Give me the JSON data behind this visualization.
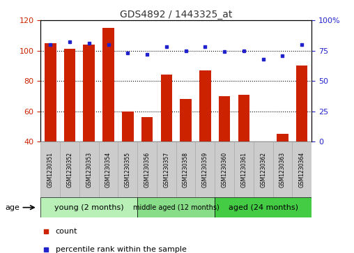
{
  "title": "GDS4892 / 1443325_at",
  "samples": [
    "GSM1230351",
    "GSM1230352",
    "GSM1230353",
    "GSM1230354",
    "GSM1230355",
    "GSM1230356",
    "GSM1230357",
    "GSM1230358",
    "GSM1230359",
    "GSM1230360",
    "GSM1230361",
    "GSM1230362",
    "GSM1230363",
    "GSM1230364"
  ],
  "counts": [
    105,
    101,
    104,
    115,
    60,
    56,
    84,
    68,
    87,
    70,
    71,
    40,
    45,
    90
  ],
  "percentiles": [
    80,
    82,
    81,
    80,
    73,
    72,
    78,
    75,
    78,
    74,
    75,
    68,
    71,
    80
  ],
  "ylim_left": [
    40,
    120
  ],
  "ylim_right": [
    0,
    100
  ],
  "yticks_left": [
    40,
    60,
    80,
    100,
    120
  ],
  "yticks_right": [
    0,
    25,
    50,
    75,
    100
  ],
  "groups": [
    {
      "label": "young (2 months)",
      "start": 0,
      "end": 5
    },
    {
      "label": "middle aged (12 months)",
      "start": 5,
      "end": 9
    },
    {
      "label": "aged (24 months)",
      "start": 9,
      "end": 14
    }
  ],
  "group_colors": [
    "#b8f0b8",
    "#88dd88",
    "#44cc44"
  ],
  "bar_color": "#CC2200",
  "dot_color": "#2222CC",
  "left_axis_color": "#CC2200",
  "right_axis_color": "#2222CC",
  "age_label": "age",
  "legend_count": "count",
  "legend_percentile": "percentile rank within the sample",
  "xtick_bg": "#cccccc",
  "xtick_border": "#aaaaaa"
}
